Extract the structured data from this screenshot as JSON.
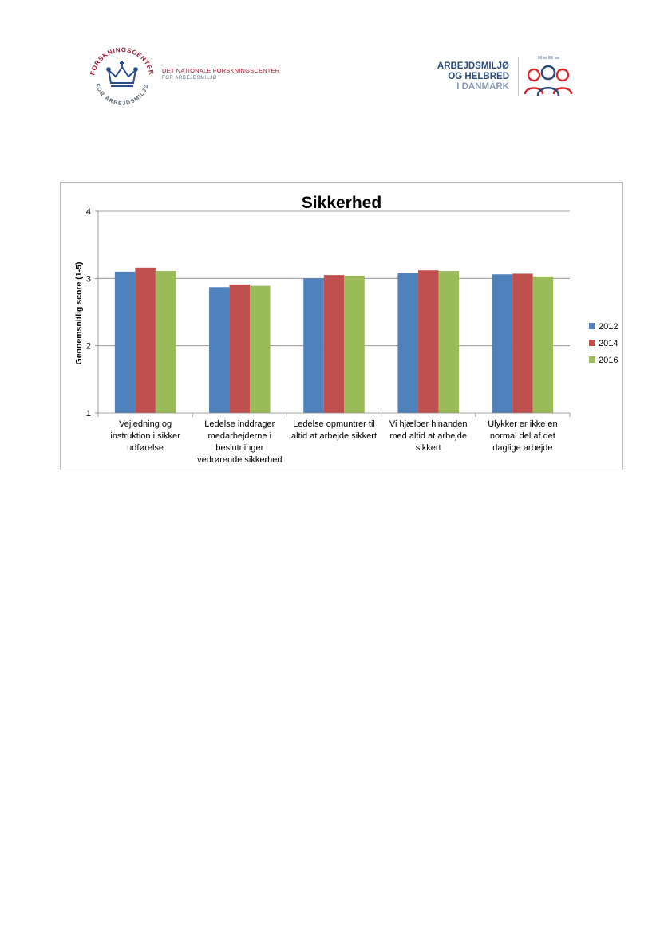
{
  "header": {
    "left_logo": {
      "seal_text_top": "FORSKNINGSCENTER",
      "seal_text_bottom": "FOR ARBEJDSMILJØ",
      "name_line1": "DET NATIONALE FORSKNINGSCENTER",
      "name_line2": "FOR ARBEJDSMILJØ",
      "color": "#9e1b32"
    },
    "right_logo": {
      "line1": "ARBEJDSMILJØ",
      "line2": "OG HELBRED",
      "line3": "I DANMARK",
      "color": "#2c4a7a",
      "icon_color": "#d9262b"
    }
  },
  "chart_data": {
    "type": "bar",
    "title": "Sikkerhed",
    "xlabel": "",
    "ylabel": "Gennemsnitlig score (1-5)",
    "ylim": [
      1,
      4
    ],
    "yticks": [
      "1",
      "2",
      "3",
      "4"
    ],
    "grid": true,
    "legend_position": "right",
    "categories": [
      [
        "Vejledning og",
        "instruktion i sikker",
        "udførelse"
      ],
      [
        "Ledelse inddrager",
        "medarbejderne i",
        "beslutninger",
        "vedrørende sikkerhed"
      ],
      [
        "Ledelse opmuntrer til",
        "altid at arbejde sikkert"
      ],
      [
        "Vi hjælper hinanden",
        "med altid at arbejde",
        "sikkert"
      ],
      [
        "Ulykker er ikke en",
        "normal del af det",
        "daglige arbejde"
      ]
    ],
    "series": [
      {
        "name": "2012",
        "color": "#4f81bd",
        "values": [
          3.1,
          2.87,
          3.0,
          3.08,
          3.06
        ]
      },
      {
        "name": "2014",
        "color": "#c0504d",
        "values": [
          3.16,
          2.91,
          3.05,
          3.12,
          3.07
        ]
      },
      {
        "name": "2016",
        "color": "#9bbb59",
        "values": [
          3.11,
          2.89,
          3.04,
          3.11,
          3.03
        ]
      }
    ]
  }
}
